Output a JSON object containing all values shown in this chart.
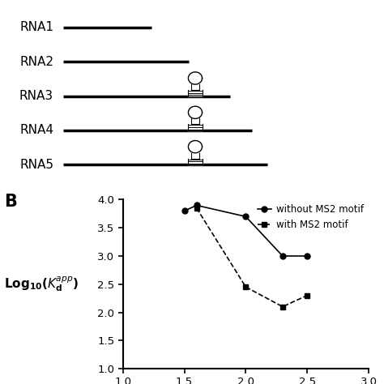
{
  "panel_B": {
    "without_ms2": {
      "x": [
        1.5,
        1.6,
        2.0,
        2.3,
        2.5
      ],
      "y": [
        3.8,
        3.9,
        3.7,
        3.0,
        3.0
      ],
      "marker": "o",
      "linestyle": "-",
      "color": "black",
      "label": "without MS2 motif",
      "markersize": 5,
      "linewidth": 1.2
    },
    "with_ms2": {
      "x": [
        1.6,
        2.0,
        2.3,
        2.5
      ],
      "y": [
        3.85,
        2.45,
        2.1,
        2.3
      ],
      "marker": "s",
      "linestyle": "--",
      "color": "black",
      "label": "with MS2 motif",
      "markersize": 5,
      "linewidth": 1.2
    },
    "xlim": [
      1.0,
      3.0
    ],
    "ylim": [
      1.0,
      4.0
    ],
    "xticks": [
      1,
      1.5,
      2,
      2.5,
      3
    ],
    "yticks": [
      1,
      1.5,
      2,
      2.5,
      3,
      3.5,
      4
    ],
    "xlabel": "",
    "ylabel": "Log$_{10}$($\\mathit{K}_d^{app}$)"
  },
  "panel_A": {
    "rnas": [
      "RNA1",
      "RNA2",
      "RNA3",
      "RNA4",
      "RNA5"
    ],
    "line_starts": [
      0.2,
      0.2,
      0.2,
      0.2,
      0.2
    ],
    "line_ends": [
      0.48,
      0.6,
      0.73,
      0.8,
      0.85
    ],
    "ms2_x": [
      null,
      null,
      0.62,
      0.62,
      0.62
    ],
    "y_positions": [
      5,
      4,
      3,
      2,
      1
    ]
  },
  "background_color": "#ffffff",
  "text_color": "#000000"
}
